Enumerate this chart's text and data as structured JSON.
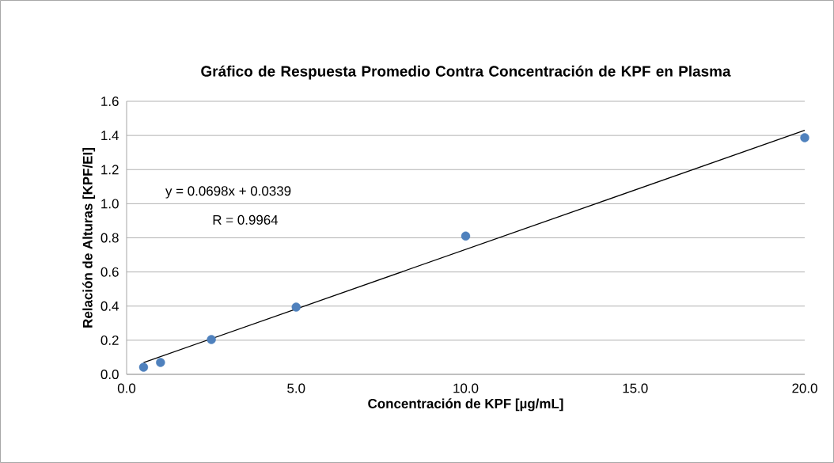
{
  "chart_data": {
    "type": "scatter",
    "title": "Gráfico de Respuesta Promedio Contra Concentración de KPF en Plasma",
    "xlabel": "Concentración de KPF [µg/mL]",
    "ylabel": "Relación de Alturas [KPF/EI]",
    "xlim": [
      0,
      20
    ],
    "ylim": [
      0,
      1.6
    ],
    "xticks": [
      {
        "value": 0,
        "label": "0.0"
      },
      {
        "value": 5,
        "label": "5.0"
      },
      {
        "value": 10,
        "label": "10.0"
      },
      {
        "value": 15,
        "label": "15.0"
      },
      {
        "value": 20,
        "label": "20.0"
      }
    ],
    "yticks": [
      {
        "value": 0,
        "label": "0.0"
      },
      {
        "value": 0.2,
        "label": "0.2"
      },
      {
        "value": 0.4,
        "label": "0.4"
      },
      {
        "value": 0.6,
        "label": "0.6"
      },
      {
        "value": 0.8,
        "label": "0.8"
      },
      {
        "value": 1.0,
        "label": "1.0"
      },
      {
        "value": 1.2,
        "label": "1.2"
      },
      {
        "value": 1.4,
        "label": "1.4"
      },
      {
        "value": 1.6,
        "label": "1.6"
      }
    ],
    "grid": "y",
    "series": [
      {
        "color": "#4f81bd",
        "marker": "circle",
        "x": [
          0.5,
          1,
          2.5,
          5,
          10,
          20
        ],
        "values": [
          0.042,
          0.07,
          0.204,
          0.394,
          0.81,
          1.387
        ]
      },
      {
        "type": "line",
        "color": "#000000",
        "marker": "none",
        "x": [
          0.5,
          20
        ],
        "values": [
          0.069,
          1.43
        ]
      }
    ],
    "annotations": [
      "y = 0.0698x + 0.0339",
      "R = 0.9964"
    ]
  }
}
